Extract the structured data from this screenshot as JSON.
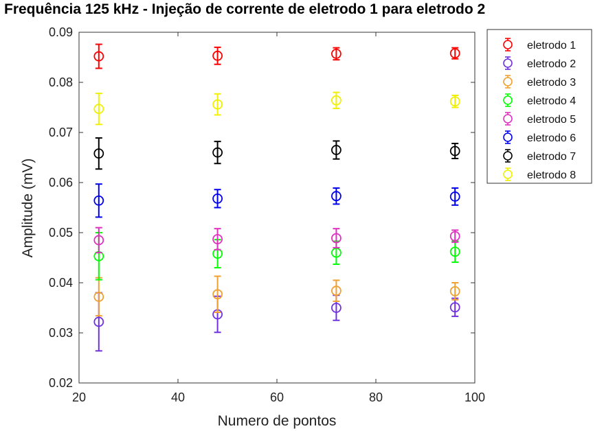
{
  "chart_data": {
    "type": "scatter",
    "title": "Frequência 125 kHz - Injeção de corrente de eletrodo 1 para eletrodo 2",
    "xlabel": "Numero de pontos",
    "ylabel": "Amplitude (mV)",
    "xlim": [
      20,
      100
    ],
    "ylim": [
      0.02,
      0.09
    ],
    "xticks": [
      "20",
      "40",
      "60",
      "80",
      "100"
    ],
    "yticks": [
      "0.02",
      "0.03",
      "0.04",
      "0.05",
      "0.06",
      "0.07",
      "0.08",
      "0.09"
    ],
    "grid": false,
    "legend_position": "outside-top-right",
    "error_bars": true,
    "x": [
      24,
      48,
      72,
      96
    ],
    "series": [
      {
        "name": "eletrodo 1",
        "color": "#ff0000",
        "values": [
          0.0852,
          0.0853,
          0.0857,
          0.0858
        ],
        "errors": [
          0.0024,
          0.0017,
          0.0012,
          0.0011
        ]
      },
      {
        "name": "eletrodo 2",
        "color": "#7030e0",
        "values": [
          0.0322,
          0.0337,
          0.035,
          0.0351
        ],
        "errors": [
          0.0058,
          0.0036,
          0.0025,
          0.0018
        ]
      },
      {
        "name": "eletrodo 3",
        "color": "#f0a030",
        "values": [
          0.0372,
          0.0377,
          0.0384,
          0.0383
        ],
        "errors": [
          0.0038,
          0.0036,
          0.0021,
          0.0017
        ]
      },
      {
        "name": "eletrodo 4",
        "color": "#00ff00",
        "values": [
          0.0453,
          0.0458,
          0.046,
          0.0462
        ],
        "errors": [
          0.0047,
          0.0028,
          0.0023,
          0.0021
        ]
      },
      {
        "name": "eletrodo 5",
        "color": "#e030c0",
        "values": [
          0.0485,
          0.0487,
          0.0489,
          0.0493
        ],
        "errors": [
          0.0025,
          0.0021,
          0.0019,
          0.0012
        ]
      },
      {
        "name": "eletrodo 6",
        "color": "#0000ee",
        "values": [
          0.0564,
          0.0568,
          0.0573,
          0.0572
        ],
        "errors": [
          0.0033,
          0.0018,
          0.0016,
          0.0017
        ]
      },
      {
        "name": "eletrodo 7",
        "color": "#000000",
        "values": [
          0.0658,
          0.066,
          0.0665,
          0.0663
        ],
        "errors": [
          0.0031,
          0.0022,
          0.0018,
          0.0015
        ]
      },
      {
        "name": "eletrodo 8",
        "color": "#f0f000",
        "values": [
          0.0747,
          0.0756,
          0.0764,
          0.0762
        ],
        "errors": [
          0.0031,
          0.0021,
          0.0016,
          0.0012
        ]
      }
    ]
  }
}
